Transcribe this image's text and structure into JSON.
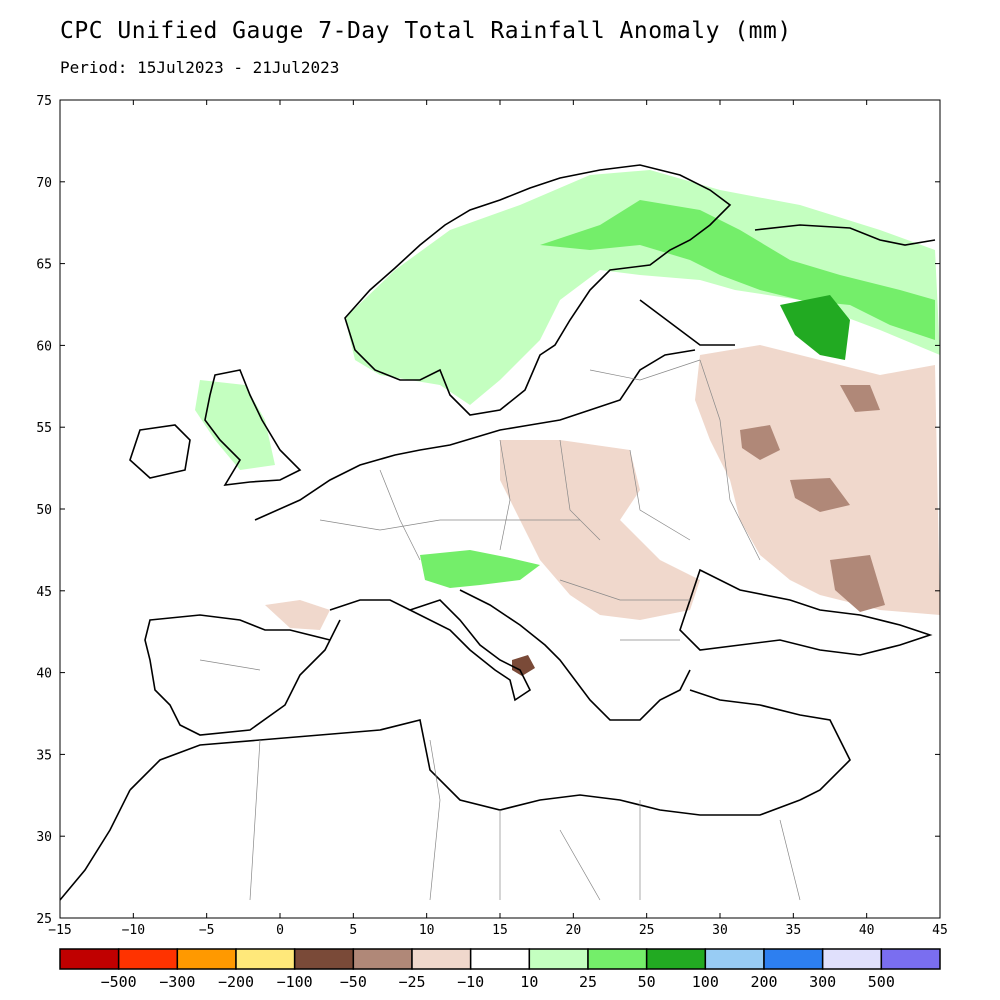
{
  "title": "CPC Unified Gauge 7-Day Total Rainfall Anomaly (mm)",
  "period": "Period: 15Jul2023 - 21Jul2023",
  "map": {
    "lon_range": [
      -15,
      45
    ],
    "lat_range": [
      25,
      75
    ],
    "lon_ticks": [
      "-15",
      "-10",
      "-5",
      "0",
      "5",
      "10",
      "15",
      "20",
      "25",
      "30",
      "35",
      "40",
      "45"
    ],
    "lat_ticks": [
      "25",
      "30",
      "35",
      "40",
      "45",
      "50",
      "55",
      "60",
      "65",
      "70",
      "75"
    ]
  },
  "legend": {
    "colors": [
      "#c00000",
      "#ff3300",
      "#ff9900",
      "#ffe87a",
      "#7a4a38",
      "#b08878",
      "#f0d8cc",
      "#ffffff",
      "#c4ffc0",
      "#74ee6a",
      "#22aa22",
      "#98ccf4",
      "#2d7ff0",
      "#e0e0fc",
      "#7a6ef0"
    ],
    "labels": [
      "-500",
      "-300",
      "-200",
      "-100",
      "-50",
      "-25",
      "-10",
      "10",
      "25",
      "50",
      "100",
      "200",
      "300",
      "500"
    ]
  },
  "anomaly_regions": [
    {
      "name": "scandinavia-wet",
      "color": "#c4ffc0"
    },
    {
      "name": "finland-wet",
      "color": "#74ee6a"
    },
    {
      "name": "nw-russia-wet",
      "color": "#22aa22"
    },
    {
      "name": "central-europe-dry",
      "color": "#f0d8cc"
    },
    {
      "name": "russia-dry",
      "color": "#b08878"
    },
    {
      "name": "italy-dry",
      "color": "#7a4a38"
    }
  ]
}
